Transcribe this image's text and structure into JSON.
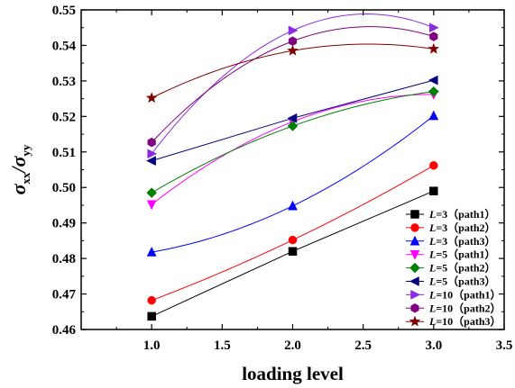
{
  "chart_data": {
    "type": "line",
    "xlabel": "loading level",
    "ylabel": {
      "base": "σ",
      "sub1": "xx",
      "mid": "/σ",
      "sub2": "yy"
    },
    "xlim": [
      0.5,
      3.5
    ],
    "ylim": [
      0.46,
      0.55
    ],
    "x_ticks": [
      "1.0",
      "1.5",
      "2.0",
      "2.5",
      "3.0",
      "3.5"
    ],
    "y_ticks": [
      "0.46",
      "0.47",
      "0.48",
      "0.49",
      "0.50",
      "0.51",
      "0.52",
      "0.53",
      "0.54",
      "0.55"
    ],
    "legend_position": "bottom-right",
    "series": [
      {
        "name": "L=3（path1）",
        "label_prefix": "L",
        "label_rest": "=3（path1）",
        "color": "#000000",
        "marker": "square",
        "smooth": false,
        "x": [
          1,
          2,
          3
        ],
        "y": [
          0.4637,
          0.482,
          0.499
        ]
      },
      {
        "name": "L=3（path2）",
        "label_prefix": "L",
        "label_rest": "=3（path2）",
        "color": "#ff0000",
        "marker": "circle",
        "smooth": true,
        "x": [
          1,
          2,
          3
        ],
        "y": [
          0.4682,
          0.4852,
          0.5062
        ]
      },
      {
        "name": "L=3（path3）",
        "label_prefix": "L",
        "label_rest": "=3（path3）",
        "color": "#0000ff",
        "marker": "triangle-up",
        "smooth": true,
        "x": [
          1,
          2,
          3
        ],
        "y": [
          0.4818,
          0.4948,
          0.5202
        ]
      },
      {
        "name": "L=5（path1）",
        "label_prefix": "L",
        "label_rest": "=5（path1）",
        "color": "#ff00ff",
        "marker": "triangle-down",
        "smooth": true,
        "x": [
          1,
          2,
          3
        ],
        "y": [
          0.4952,
          0.5185,
          0.5262
        ]
      },
      {
        "name": "L=5（path2）",
        "label_prefix": "L",
        "label_rest": "=5（path2）",
        "color": "#008000",
        "marker": "diamond",
        "smooth": true,
        "x": [
          1,
          2,
          3
        ],
        "y": [
          0.4985,
          0.5173,
          0.527
        ]
      },
      {
        "name": "L=5（path3）",
        "label_prefix": "L",
        "label_rest": "=5（path3）",
        "color": "#000080",
        "marker": "triangle-left",
        "smooth": false,
        "x": [
          1,
          2,
          3
        ],
        "y": [
          0.5075,
          0.5195,
          0.5302
        ]
      },
      {
        "name": "L=10（path1）",
        "label_prefix": "L",
        "label_rest": "=10（path1）",
        "color": "#8a2be2",
        "marker": "triangle-right",
        "smooth": true,
        "x": [
          1,
          2,
          3
        ],
        "y": [
          0.5095,
          0.5442,
          0.545
        ]
      },
      {
        "name": "L=10（path2）",
        "label_prefix": "L",
        "label_rest": "=10（path2）",
        "color": "#800080",
        "marker": "hexagon",
        "smooth": true,
        "x": [
          1,
          2,
          3
        ],
        "y": [
          0.5127,
          0.5412,
          0.5425
        ]
      },
      {
        "name": "L=10（path3）",
        "label_prefix": "L",
        "label_rest": "=10（path3）",
        "color": "#800000",
        "marker": "star",
        "smooth": true,
        "x": [
          1,
          2,
          3
        ],
        "y": [
          0.5252,
          0.5385,
          0.539
        ]
      }
    ]
  }
}
